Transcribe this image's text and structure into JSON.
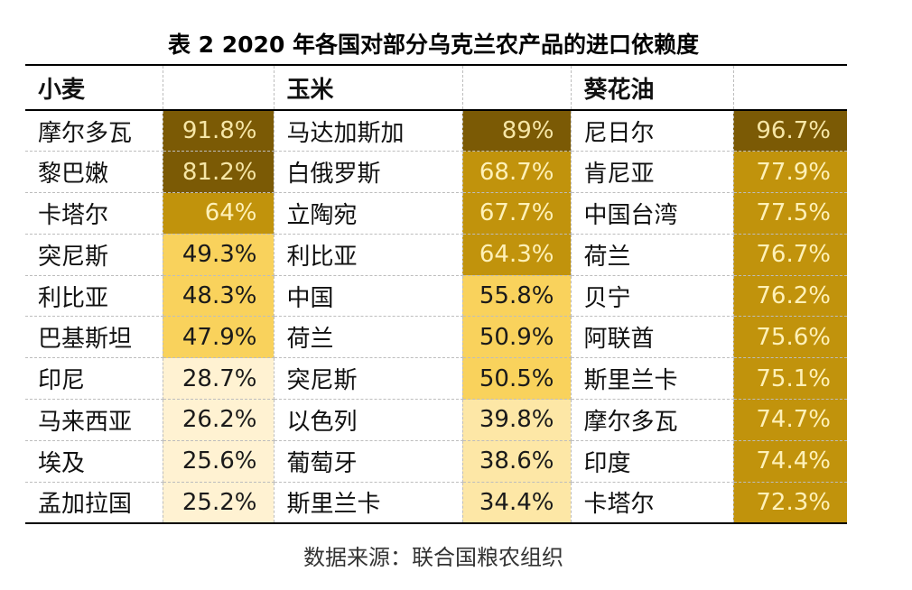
{
  "title": "表 2 2020 年各国对部分乌克兰农产品的进口依赖度",
  "columns": [
    "小麦",
    "玉米",
    "葵花油"
  ],
  "rows": [
    [
      [
        "摩尔多瓦",
        "91.8%"
      ],
      [
        "马达加斯加",
        "89%"
      ],
      [
        "尼日尔",
        "96.7%"
      ]
    ],
    [
      [
        "黎巴嫩",
        "81.2%"
      ],
      [
        "白俄罗斯",
        "68.7%"
      ],
      [
        "肯尼亚",
        "77.9%"
      ]
    ],
    [
      [
        "卡塔尔",
        "64%"
      ],
      [
        "立陶宛",
        "67.7%"
      ],
      [
        "中国台湾",
        "77.5%"
      ]
    ],
    [
      [
        "突尼斯",
        "49.3%"
      ],
      [
        "利比亚",
        "64.3%"
      ],
      [
        "荷兰",
        "76.7%"
      ]
    ],
    [
      [
        "利比亚",
        "48.3%"
      ],
      [
        "中国",
        "55.8%"
      ],
      [
        "贝宁",
        "76.2%"
      ]
    ],
    [
      [
        "巴基斯坦",
        "47.9%"
      ],
      [
        "荷兰",
        "50.9%"
      ],
      [
        "阿联酋",
        "75.6%"
      ]
    ],
    [
      [
        "印尼",
        "28.7%"
      ],
      [
        "突尼斯",
        "50.5%"
      ],
      [
        "斯里兰卡",
        "75.1%"
      ]
    ],
    [
      [
        "马来西亚",
        "26.2%"
      ],
      [
        "以色列",
        "39.8%"
      ],
      [
        "摩尔多瓦",
        "74.7%"
      ]
    ],
    [
      [
        "埃及",
        "25.6%"
      ],
      [
        "葡萄牙",
        "38.6%"
      ],
      [
        "印度",
        "74.4%"
      ]
    ],
    [
      [
        "孟加拉国",
        "25.2%"
      ],
      [
        "斯里兰卡",
        "34.4%"
      ],
      [
        "卡塔尔",
        "72.3%"
      ]
    ]
  ],
  "source": "数据来源：联合国粮农组织",
  "colors": {
    "level_80_plus": "#7b5a05",
    "level_60_80": "#c1930c",
    "level_45_60": "#f9d25c",
    "level_30_45": "#fde7a6",
    "level_below_30": "#fff2d2"
  }
}
